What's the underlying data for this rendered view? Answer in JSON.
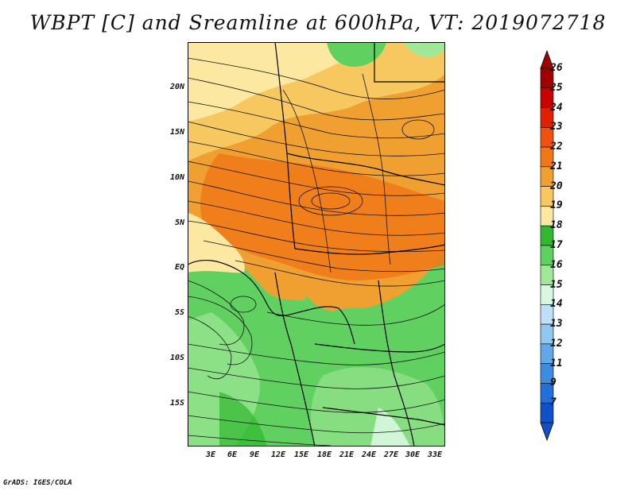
{
  "title": "WBPT [C] and Sreamline at 600hPa, VT: 2019072718",
  "footer": "GrADS: IGES/COLA",
  "lat_labels": [
    "20N",
    "15N",
    "10N",
    "5N",
    "EQ",
    "5S",
    "10S",
    "15S"
  ],
  "lon_labels": [
    "3E",
    "6E",
    "9E",
    "12E",
    "15E",
    "18E",
    "21E",
    "24E",
    "27E",
    "30E",
    "33E"
  ],
  "colorbar": {
    "labels": [
      "26",
      "25",
      "24",
      "23",
      "22",
      "21",
      "20",
      "19",
      "18",
      "17",
      "16",
      "15",
      "14",
      "13",
      "12",
      "11",
      "9",
      "7"
    ],
    "colors": [
      "#a00000",
      "#c80000",
      "#e02000",
      "#f05010",
      "#f07818",
      "#f0a030",
      "#f8c860",
      "#fce8a0",
      "#30b830",
      "#60d060",
      "#a0e898",
      "#d8f8e0",
      "#c0e0f8",
      "#90c8f0",
      "#60a8e8",
      "#3c8ce0",
      "#2070d8",
      "#1050c8"
    ]
  },
  "colors": {
    "orange": "#f0a030",
    "dark_orange": "#f07818",
    "light_yellow": "#fce8a0",
    "yellow": "#f8c860",
    "green": "#60d060",
    "light_green": "#a0e898",
    "dark_green": "#30b830"
  }
}
